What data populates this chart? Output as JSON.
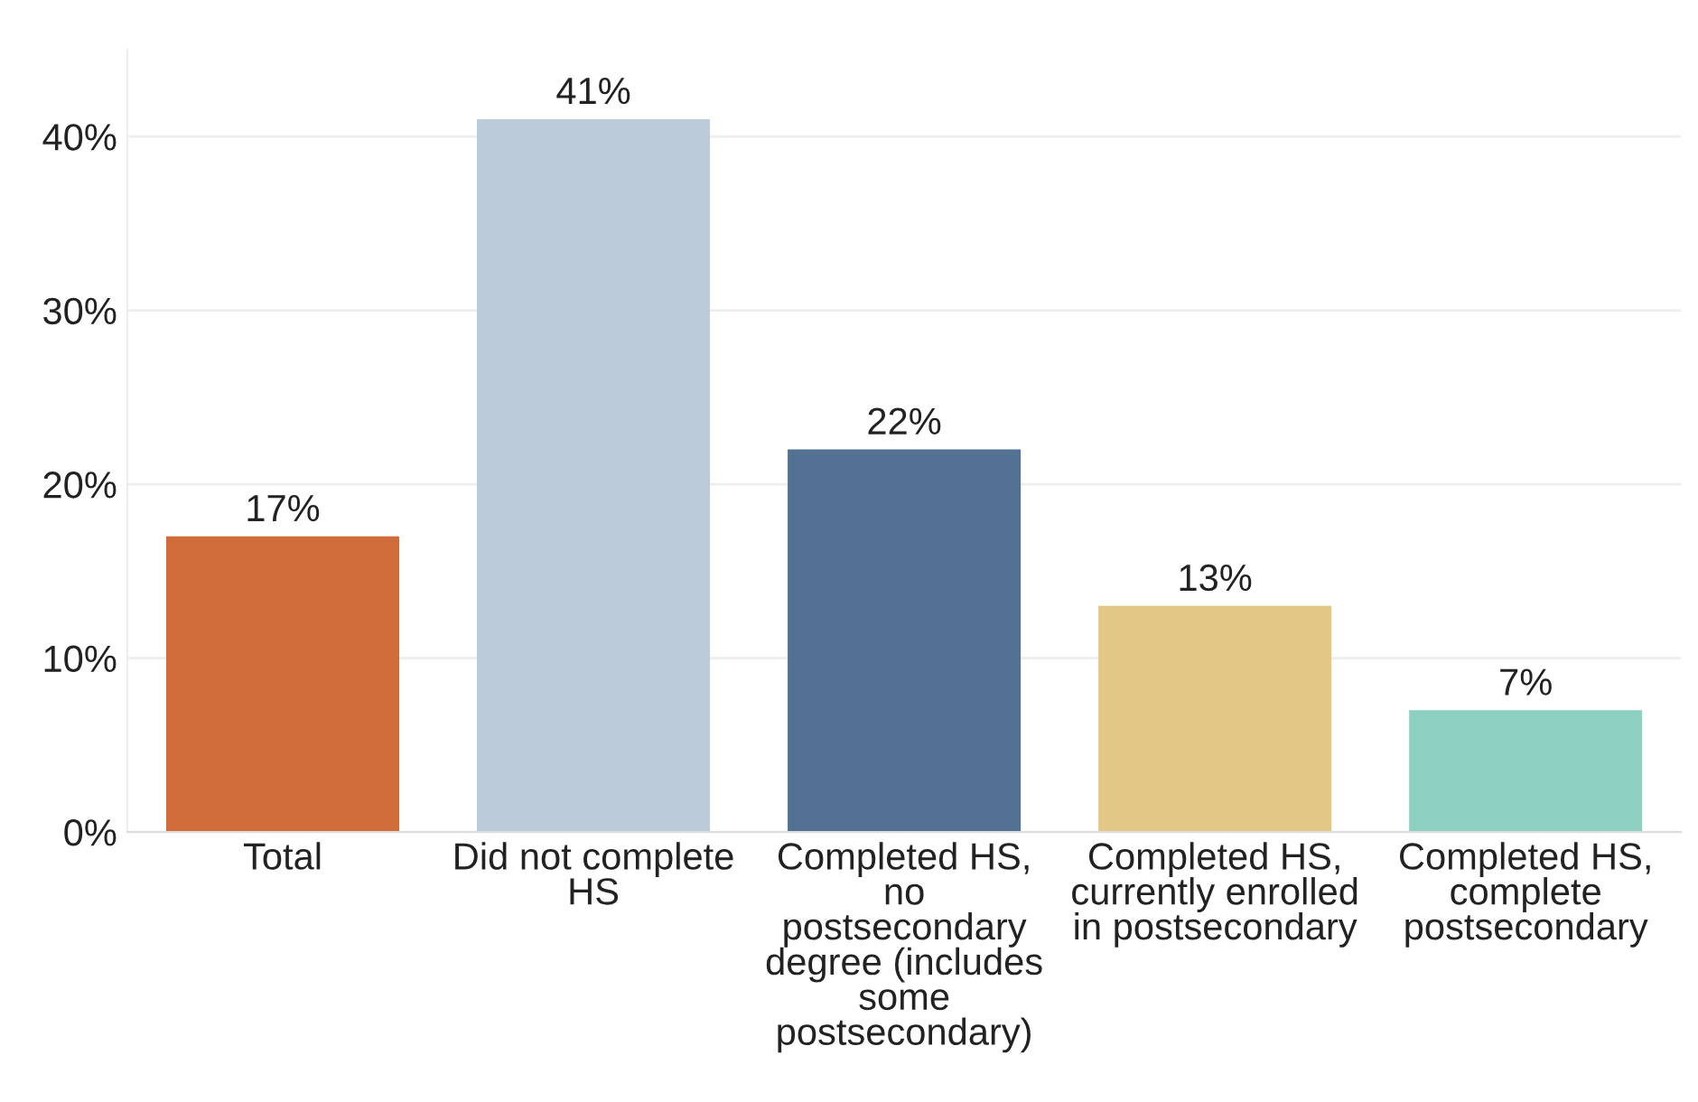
{
  "chart_data": {
    "type": "bar",
    "categories": [
      "Total",
      "Did not complete HS",
      "Completed HS, no postsecondary degree (includes some postsecondary)",
      "Completed HS, currently enrolled in postsecondary",
      "Completed HS, complete postsecondary"
    ],
    "values": [
      17,
      41,
      22,
      13,
      7
    ],
    "colors": [
      "#d06c3a",
      "#bccbd9",
      "#527193",
      "#e2c785",
      "#8dd0c1"
    ],
    "value_labels": [
      "17%",
      "41%",
      "22%",
      "13%",
      "7%"
    ],
    "ylim": [
      0,
      45
    ],
    "yticks": [
      {
        "value": 0,
        "label": "0%"
      },
      {
        "value": 10,
        "label": "10%"
      },
      {
        "value": 20,
        "label": "20%"
      },
      {
        "value": 30,
        "label": "30%"
      },
      {
        "value": 40,
        "label": "40%"
      }
    ],
    "grid": "y",
    "legend": false
  }
}
